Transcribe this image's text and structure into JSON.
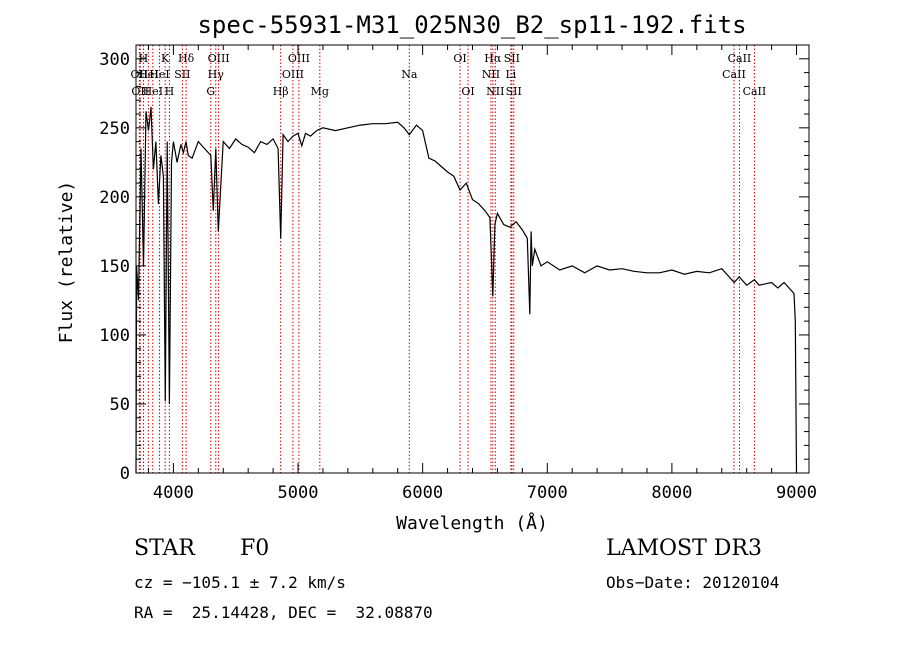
{
  "chart_data": {
    "type": "line",
    "title": "spec-55931-M31_025N30_B2_sp11-192.fits",
    "xlabel": "Wavelength (Å)",
    "ylabel": "Flux (relative)",
    "xlim": [
      3700,
      9100
    ],
    "ylim": [
      0,
      310
    ],
    "xticks": [
      4000,
      5000,
      6000,
      7000,
      8000,
      9000
    ],
    "yticks": [
      0,
      50,
      100,
      150,
      200,
      250,
      300
    ],
    "grid": false,
    "series": [
      {
        "name": "flux",
        "x": [
          3700,
          3705,
          3720,
          3740,
          3760,
          3780,
          3800,
          3820,
          3840,
          3860,
          3880,
          3900,
          3920,
          3935,
          3950,
          3968,
          3985,
          4000,
          4030,
          4060,
          4080,
          4101,
          4120,
          4150,
          4200,
          4250,
          4300,
          4320,
          4340,
          4360,
          4400,
          4450,
          4500,
          4550,
          4600,
          4650,
          4700,
          4750,
          4800,
          4840,
          4861,
          4880,
          4920,
          4960,
          5000,
          5030,
          5060,
          5100,
          5150,
          5200,
          5300,
          5400,
          5500,
          5600,
          5700,
          5800,
          5850,
          5893,
          5950,
          6000,
          6050,
          6100,
          6150,
          6200,
          6250,
          6300,
          6350,
          6400,
          6450,
          6500,
          6540,
          6563,
          6580,
          6600,
          6650,
          6700,
          6750,
          6800,
          6840,
          6860,
          6870,
          6880,
          6900,
          6950,
          7000,
          7100,
          7200,
          7300,
          7400,
          7500,
          7600,
          7700,
          7800,
          7900,
          8000,
          8100,
          8200,
          8300,
          8400,
          8500,
          8540,
          8600,
          8662,
          8700,
          8800,
          8850,
          8900,
          8950,
          8980,
          8990,
          9000
        ],
        "values": [
          0,
          150,
          125,
          235,
          150,
          262,
          248,
          265,
          220,
          240,
          195,
          230,
          215,
          52,
          240,
          50,
          225,
          240,
          225,
          238,
          232,
          240,
          230,
          228,
          240,
          235,
          230,
          190,
          235,
          175,
          240,
          235,
          242,
          238,
          236,
          232,
          240,
          238,
          242,
          235,
          170,
          245,
          240,
          244,
          246,
          237,
          246,
          244,
          248,
          250,
          248,
          250,
          252,
          253,
          253,
          254,
          250,
          245,
          252,
          248,
          228,
          226,
          222,
          218,
          215,
          205,
          210,
          198,
          195,
          190,
          185,
          128,
          180,
          188,
          180,
          178,
          182,
          176,
          170,
          115,
          175,
          150,
          162,
          150,
          153,
          147,
          150,
          145,
          150,
          147,
          148,
          146,
          145,
          145,
          147,
          144,
          146,
          145,
          148,
          138,
          142,
          136,
          140,
          136,
          138,
          134,
          138,
          133,
          130,
          110,
          0
        ]
      }
    ],
    "lines": [
      {
        "x": 3727,
        "label": "OII",
        "row": 2
      },
      {
        "x": 3734,
        "label": "OII",
        "row": 3
      },
      {
        "x": 3760,
        "label": "H",
        "row": 1
      },
      {
        "x": 3799,
        "label": "HeI",
        "row": 2
      },
      {
        "x": 3835,
        "label": "HeI",
        "row": 3
      },
      {
        "x": 3889,
        "label": "HeI",
        "row": 2
      },
      {
        "x": 3934,
        "label": "K",
        "row": 1
      },
      {
        "x": 3968,
        "label": "H",
        "row": 3
      },
      {
        "x": 4072,
        "label": "SII",
        "row": 2
      },
      {
        "x": 4102,
        "label": "Hδ",
        "row": 1
      },
      {
        "x": 4300,
        "label": "G",
        "row": 3
      },
      {
        "x": 4340,
        "label": "Hγ",
        "row": 2
      },
      {
        "x": 4363,
        "label": "OIII",
        "row": 1
      },
      {
        "x": 4861,
        "label": "Hβ",
        "row": 3
      },
      {
        "x": 4959,
        "label": "OIII",
        "row": 2
      },
      {
        "x": 5007,
        "label": "OIII",
        "row": 1
      },
      {
        "x": 5175,
        "label": "Mg",
        "row": 3
      },
      {
        "x": 5893,
        "label": "Na",
        "row": 2
      },
      {
        "x": 6300,
        "label": "OI",
        "row": 1
      },
      {
        "x": 6364,
        "label": "OI",
        "row": 3
      },
      {
        "x": 6548,
        "label": "NII",
        "row": 2
      },
      {
        "x": 6563,
        "label": "Hα",
        "row": 1
      },
      {
        "x": 6583,
        "label": "NII",
        "row": 3
      },
      {
        "x": 6708,
        "label": "Li",
        "row": 2
      },
      {
        "x": 6716,
        "label": "SII",
        "row": 1
      },
      {
        "x": 6731,
        "label": "SII",
        "row": 3
      },
      {
        "x": 8498,
        "label": "CaII",
        "row": 2
      },
      {
        "x": 8542,
        "label": "CaII",
        "row": 1
      },
      {
        "x": 8662,
        "label": "CaII",
        "row": 3
      }
    ]
  },
  "footer": {
    "class_label": "STAR",
    "subclass": "F0",
    "survey": "LAMOST DR3",
    "cz": "cz = −105.1 ± 7.2 km/s",
    "obs_date": "Obs−Date: 20120104",
    "coords": "RA =  25.14428, DEC =  32.08870"
  },
  "colors": {
    "line_marker": "#cc0000",
    "spectrum": "#000000",
    "background": "#ffffff"
  }
}
